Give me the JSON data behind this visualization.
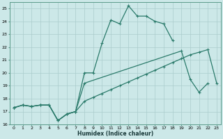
{
  "xlabel": "Humidex (Indice chaleur)",
  "bg_color": "#cce8e8",
  "grid_color": "#aacccc",
  "line_color": "#2a7a6a",
  "xlim": [
    -0.5,
    23.5
  ],
  "ylim": [
    16,
    25.5
  ],
  "xticks": [
    0,
    1,
    2,
    3,
    4,
    5,
    6,
    7,
    8,
    9,
    10,
    11,
    12,
    13,
    14,
    15,
    16,
    17,
    18,
    19,
    20,
    21,
    22,
    23
  ],
  "yticks": [
    16,
    17,
    18,
    19,
    20,
    21,
    22,
    23,
    24,
    25
  ],
  "line1_x": [
    0,
    1,
    2,
    3,
    4,
    5,
    6,
    7,
    8,
    9,
    10,
    11,
    12,
    13,
    14,
    15,
    16,
    17,
    18
  ],
  "line1_y": [
    17.3,
    17.5,
    17.4,
    17.5,
    17.5,
    16.3,
    16.8,
    17.0,
    20.0,
    20.0,
    22.3,
    24.1,
    23.8,
    25.2,
    24.4,
    24.4,
    24.0,
    23.8,
    22.5
  ],
  "line2_x": [
    0,
    1,
    2,
    3,
    4,
    5,
    6,
    7,
    8,
    19,
    20,
    21,
    22
  ],
  "line2_y": [
    17.3,
    17.5,
    17.4,
    17.5,
    17.5,
    16.3,
    16.8,
    17.0,
    19.2,
    21.7,
    19.5,
    18.5,
    19.2
  ],
  "line3_x": [
    0,
    1,
    2,
    3,
    4,
    5,
    6,
    7,
    8,
    9,
    10,
    11,
    12,
    13,
    14,
    15,
    16,
    17,
    18,
    19,
    20,
    21,
    22,
    23
  ],
  "line3_y": [
    17.3,
    17.5,
    17.4,
    17.5,
    17.5,
    16.3,
    16.8,
    17.0,
    17.8,
    18.1,
    18.4,
    18.7,
    19.0,
    19.3,
    19.6,
    19.9,
    20.2,
    20.5,
    20.8,
    21.1,
    21.4,
    21.6,
    21.8,
    19.2
  ]
}
